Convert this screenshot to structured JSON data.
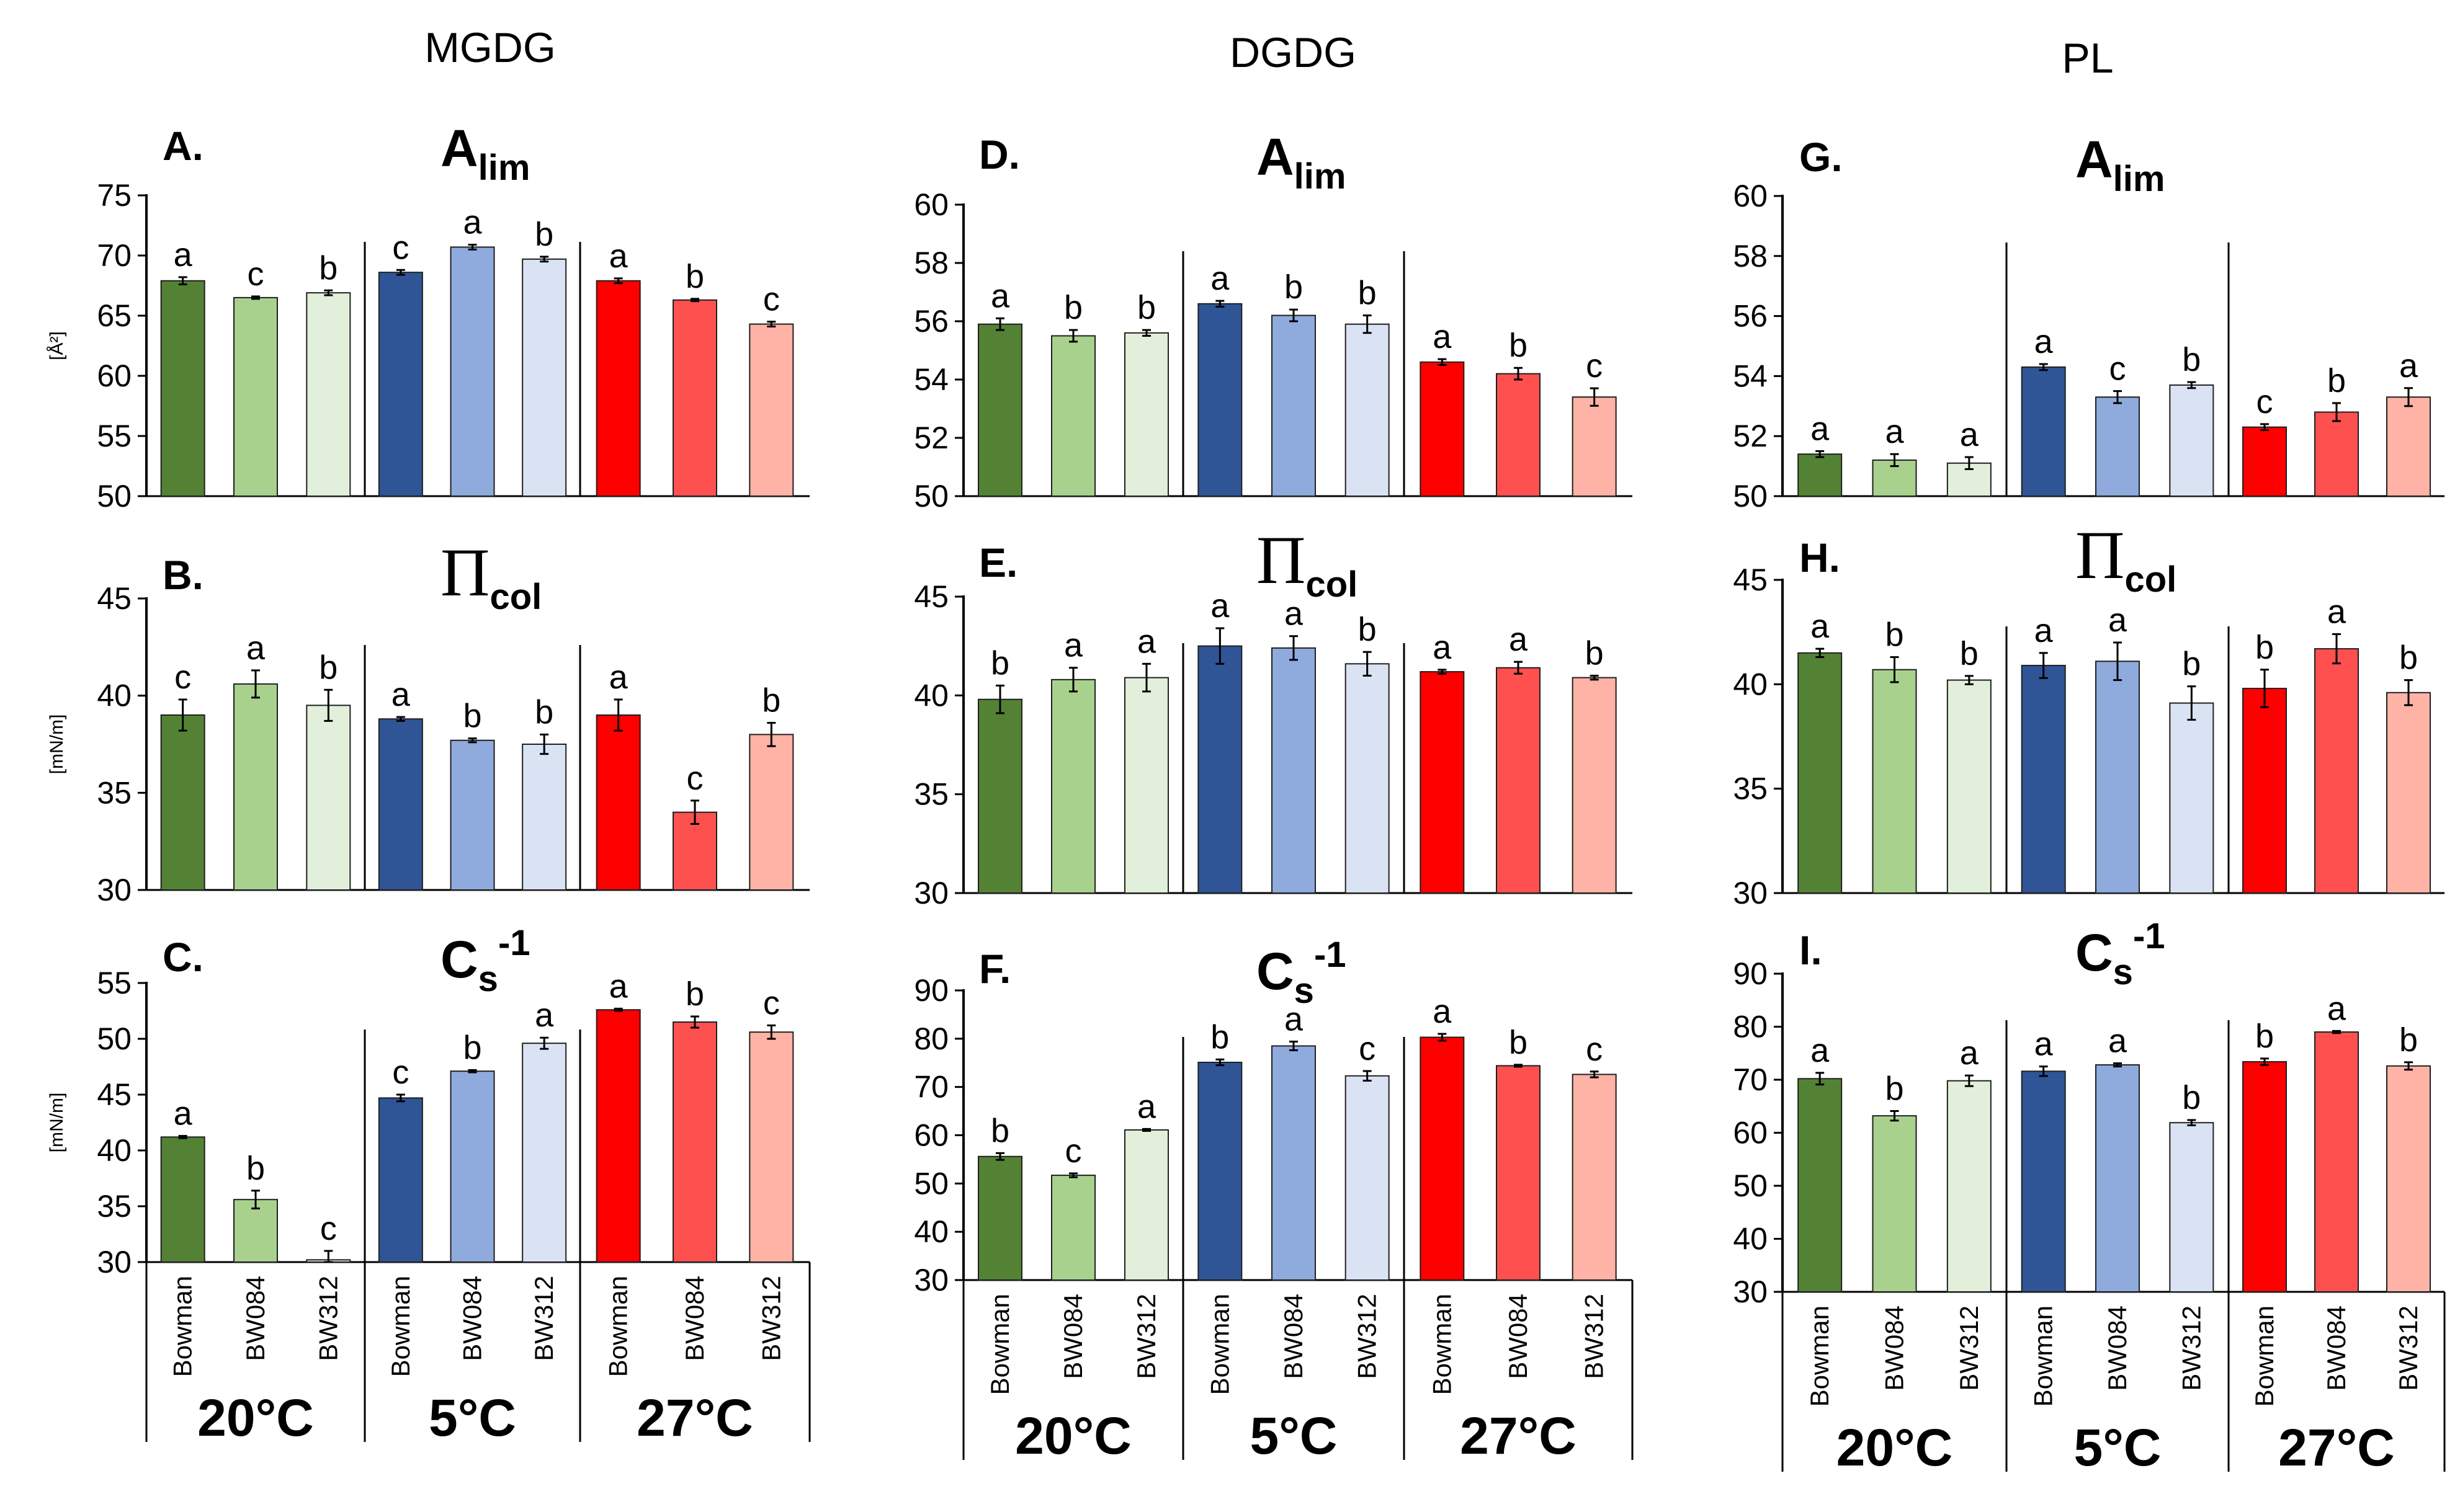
{
  "figure": {
    "column_titles": [
      "MGDG",
      "DGDG",
      "PL"
    ],
    "genotypes": [
      "Bowman",
      "BW084",
      "BW312"
    ],
    "temperatures": [
      "20",
      "5",
      "27"
    ],
    "temperature_unit": "°C",
    "colors": {
      "20": [
        "#548235",
        "#a9d18e",
        "#e2efda"
      ],
      "5": [
        "#2f5597",
        "#8faadc",
        "#dae3f3"
      ],
      "27": [
        "#ff0000",
        "#ff5050",
        "#ffb3a7"
      ]
    }
  },
  "chart_data": [
    {
      "panel": "A.",
      "column": "MGDG",
      "type": "bar",
      "param": {
        "main": "A",
        "sub": "lim",
        "sup": ""
      },
      "ylabel": "[Å²]",
      "ylim": [
        50,
        75
      ],
      "yticks": [
        50,
        55,
        60,
        65,
        70,
        75
      ],
      "groups": [
        "20°C",
        "5°C",
        "27°C"
      ],
      "categories": [
        "Bowman",
        "BW084",
        "BW312"
      ],
      "values": [
        [
          67.9,
          66.5,
          66.9
        ],
        [
          68.6,
          70.7,
          69.7
        ],
        [
          67.9,
          66.3,
          64.3
        ]
      ],
      "errors": [
        [
          0.3,
          0.1,
          0.2
        ],
        [
          0.2,
          0.2,
          0.2
        ],
        [
          0.2,
          0.1,
          0.2
        ]
      ],
      "letters": [
        [
          "a",
          "c",
          "b"
        ],
        [
          "c",
          "a",
          "b"
        ],
        [
          "a",
          "b",
          "c"
        ]
      ]
    },
    {
      "panel": "B.",
      "column": "MGDG",
      "type": "bar",
      "param": {
        "main": "Π",
        "sub": "col",
        "sup": ""
      },
      "ylabel": "[mN/m]",
      "ylim": [
        30,
        45
      ],
      "yticks": [
        30,
        35,
        40,
        45
      ],
      "groups": [
        "20°C",
        "5°C",
        "27°C"
      ],
      "categories": [
        "Bowman",
        "BW084",
        "BW312"
      ],
      "values": [
        [
          39.0,
          40.6,
          39.5
        ],
        [
          38.8,
          37.7,
          37.5
        ],
        [
          39.0,
          34.0,
          38.0
        ]
      ],
      "errors": [
        [
          0.8,
          0.7,
          0.8
        ],
        [
          0.1,
          0.1,
          0.5
        ],
        [
          0.8,
          0.6,
          0.6
        ]
      ],
      "letters": [
        [
          "c",
          "a",
          "b"
        ],
        [
          "a",
          "b",
          "b"
        ],
        [
          "a",
          "c",
          "b"
        ]
      ]
    },
    {
      "panel": "C.",
      "column": "MGDG",
      "type": "bar",
      "param": {
        "main": "C",
        "sub": "s",
        "sup": "-1"
      },
      "ylabel": "[mN/m]",
      "ylim": [
        30,
        55
      ],
      "yticks": [
        30,
        35,
        40,
        45,
        50,
        55
      ],
      "groups": [
        "20°C",
        "5°C",
        "27°C"
      ],
      "categories": [
        "Bowman",
        "BW084",
        "BW312"
      ],
      "values": [
        [
          41.2,
          35.6,
          30.2
        ],
        [
          44.7,
          47.1,
          49.6
        ],
        [
          52.6,
          51.5,
          50.6
        ]
      ],
      "errors": [
        [
          0.1,
          0.8,
          0.8
        ],
        [
          0.3,
          0.1,
          0.5
        ],
        [
          0.1,
          0.5,
          0.6
        ]
      ],
      "letters": [
        [
          "a",
          "b",
          "c"
        ],
        [
          "c",
          "b",
          "a"
        ],
        [
          "a",
          "b",
          "c"
        ]
      ]
    },
    {
      "panel": "D.",
      "column": "DGDG",
      "type": "bar",
      "param": {
        "main": "A",
        "sub": "lim",
        "sup": ""
      },
      "ylabel": "",
      "ylim": [
        50,
        60
      ],
      "yticks": [
        50,
        52,
        54,
        56,
        58,
        60
      ],
      "groups": [
        "20°C",
        "5°C",
        "27°C"
      ],
      "categories": [
        "Bowman",
        "BW084",
        "BW312"
      ],
      "values": [
        [
          55.9,
          55.5,
          55.6
        ],
        [
          56.6,
          56.2,
          55.9
        ],
        [
          54.6,
          54.2,
          53.4
        ]
      ],
      "errors": [
        [
          0.2,
          0.2,
          0.1
        ],
        [
          0.1,
          0.2,
          0.3
        ],
        [
          0.1,
          0.2,
          0.3
        ]
      ],
      "letters": [
        [
          "a",
          "b",
          "b"
        ],
        [
          "a",
          "b",
          "b"
        ],
        [
          "a",
          "b",
          "c"
        ]
      ]
    },
    {
      "panel": "E.",
      "column": "DGDG",
      "type": "bar",
      "param": {
        "main": "Π",
        "sub": "col",
        "sup": ""
      },
      "ylabel": "",
      "ylim": [
        30,
        45
      ],
      "yticks": [
        30,
        35,
        40,
        45
      ],
      "groups": [
        "20°C",
        "5°C",
        "27°C"
      ],
      "categories": [
        "Bowman",
        "BW084",
        "BW312"
      ],
      "values": [
        [
          39.8,
          40.8,
          40.9
        ],
        [
          42.5,
          42.4,
          41.6
        ],
        [
          41.2,
          41.4,
          40.9
        ]
      ],
      "errors": [
        [
          0.7,
          0.6,
          0.7
        ],
        [
          0.9,
          0.6,
          0.6
        ],
        [
          0.1,
          0.3,
          0.1
        ]
      ],
      "letters": [
        [
          "b",
          "a",
          "a"
        ],
        [
          "a",
          "a",
          "b"
        ],
        [
          "a",
          "a",
          "b"
        ]
      ]
    },
    {
      "panel": "F.",
      "column": "DGDG",
      "type": "bar",
      "param": {
        "main": "C",
        "sub": "s",
        "sup": "-1"
      },
      "ylabel": "",
      "ylim": [
        30,
        90
      ],
      "yticks": [
        30,
        40,
        50,
        60,
        70,
        80,
        90
      ],
      "groups": [
        "20°C",
        "5°C",
        "27°C"
      ],
      "categories": [
        "Bowman",
        "BW084",
        "BW312"
      ],
      "values": [
        [
          55.6,
          51.7,
          61.1
        ],
        [
          75.1,
          78.5,
          72.3
        ],
        [
          80.3,
          74.4,
          72.6
        ]
      ],
      "errors": [
        [
          0.7,
          0.4,
          0.2
        ],
        [
          0.6,
          0.9,
          1.0
        ],
        [
          0.7,
          0.2,
          0.6
        ]
      ],
      "letters": [
        [
          "b",
          "c",
          "a"
        ],
        [
          "b",
          "a",
          "c"
        ],
        [
          "a",
          "b",
          "c"
        ]
      ]
    },
    {
      "panel": "G.",
      "column": "PL",
      "type": "bar",
      "param": {
        "main": "A",
        "sub": "lim",
        "sup": ""
      },
      "ylabel": "",
      "ylim": [
        50,
        60
      ],
      "yticks": [
        50,
        52,
        54,
        56,
        58,
        60
      ],
      "groups": [
        "20°C",
        "5°C",
        "27°C"
      ],
      "categories": [
        "Bowman",
        "BW084",
        "BW312"
      ],
      "values": [
        [
          51.4,
          51.2,
          51.1
        ],
        [
          54.3,
          53.3,
          53.7
        ],
        [
          52.3,
          52.8,
          53.3
        ]
      ],
      "errors": [
        [
          0.1,
          0.2,
          0.2
        ],
        [
          0.1,
          0.2,
          0.1
        ],
        [
          0.1,
          0.3,
          0.3
        ]
      ],
      "letters": [
        [
          "a",
          "a",
          "a"
        ],
        [
          "a",
          "c",
          "b"
        ],
        [
          "c",
          "b",
          "a"
        ]
      ]
    },
    {
      "panel": "H.",
      "column": "PL",
      "type": "bar",
      "param": {
        "main": "Π",
        "sub": "col",
        "sup": ""
      },
      "ylabel": "",
      "ylim": [
        30,
        45
      ],
      "yticks": [
        30,
        35,
        40,
        45
      ],
      "groups": [
        "20°C",
        "5°C",
        "27°C"
      ],
      "categories": [
        "Bowman",
        "BW084",
        "BW312"
      ],
      "values": [
        [
          41.5,
          40.7,
          40.2
        ],
        [
          40.9,
          41.1,
          39.1
        ],
        [
          39.8,
          41.7,
          39.6
        ]
      ],
      "errors": [
        [
          0.2,
          0.6,
          0.2
        ],
        [
          0.6,
          0.9,
          0.8
        ],
        [
          0.9,
          0.7,
          0.6
        ]
      ],
      "letters": [
        [
          "a",
          "b",
          "b"
        ],
        [
          "a",
          "a",
          "b"
        ],
        [
          "b",
          "a",
          "b"
        ]
      ]
    },
    {
      "panel": "I.",
      "column": "PL",
      "type": "bar",
      "param": {
        "main": "C",
        "sub": "s",
        "sup": "-1"
      },
      "ylabel": "",
      "ylim": [
        30,
        90
      ],
      "yticks": [
        30,
        40,
        50,
        60,
        70,
        80,
        90
      ],
      "groups": [
        "20°C",
        "5°C",
        "27°C"
      ],
      "categories": [
        "Bowman",
        "BW084",
        "BW312"
      ],
      "values": [
        [
          70.2,
          63.2,
          69.8
        ],
        [
          71.6,
          72.8,
          61.9
        ],
        [
          73.4,
          79.0,
          72.6
        ]
      ],
      "errors": [
        [
          1.1,
          0.9,
          1.0
        ],
        [
          0.9,
          0.3,
          0.5
        ],
        [
          0.6,
          0.2,
          0.7
        ]
      ],
      "letters": [
        [
          "a",
          "b",
          "a"
        ],
        [
          "a",
          "a",
          "b"
        ],
        [
          "b",
          "a",
          "b"
        ]
      ]
    }
  ]
}
